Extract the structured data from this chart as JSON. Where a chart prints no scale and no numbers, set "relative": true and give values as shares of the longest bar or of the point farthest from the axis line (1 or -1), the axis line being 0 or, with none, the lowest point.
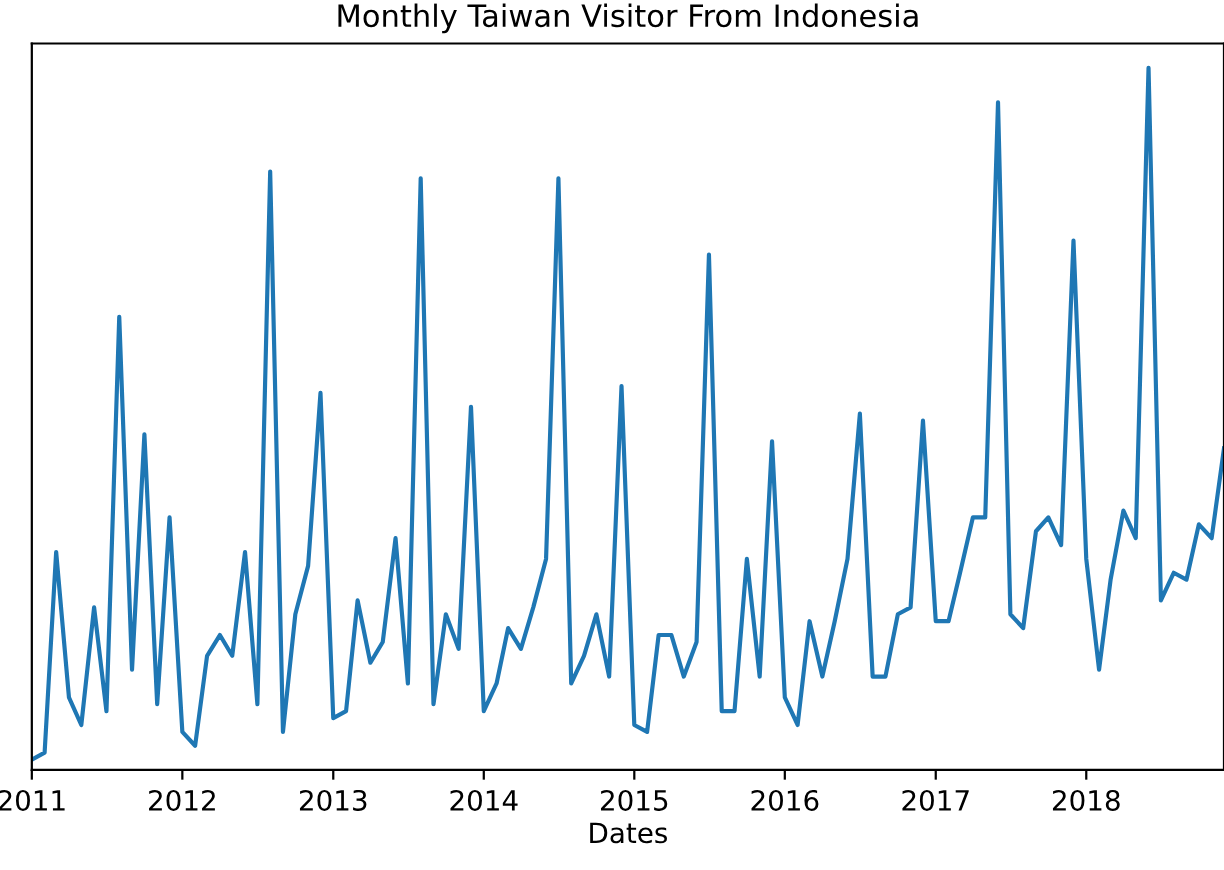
{
  "chart_data": {
    "type": "line",
    "title": "Monthly Taiwan Visitor From Indonesia",
    "xlabel": "Dates",
    "relative": true,
    "tick_labels": "x",
    "grid": false,
    "legend": false,
    "xlim": [
      "2011-01",
      "2018-12"
    ],
    "xticks": [
      {
        "value": "2011-01",
        "label": "2011"
      },
      {
        "value": "2012-01",
        "label": "2012"
      },
      {
        "value": "2013-01",
        "label": "2013"
      },
      {
        "value": "2014-01",
        "label": "2014"
      },
      {
        "value": "2015-01",
        "label": "2015"
      },
      {
        "value": "2016-01",
        "label": "2016"
      },
      {
        "value": "2017-01",
        "label": "2017"
      },
      {
        "value": "2018-01",
        "label": "2018"
      }
    ],
    "x": [
      "2011-01",
      "2011-02",
      "2011-03",
      "2011-04",
      "2011-05",
      "2011-06",
      "2011-07",
      "2011-08",
      "2011-09",
      "2011-10",
      "2011-11",
      "2011-12",
      "2012-01",
      "2012-02",
      "2012-03",
      "2012-04",
      "2012-05",
      "2012-06",
      "2012-07",
      "2012-08",
      "2012-09",
      "2012-10",
      "2012-11",
      "2012-12",
      "2013-01",
      "2013-02",
      "2013-03",
      "2013-04",
      "2013-05",
      "2013-06",
      "2013-07",
      "2013-08",
      "2013-09",
      "2013-10",
      "2013-11",
      "2013-12",
      "2014-01",
      "2014-02",
      "2014-03",
      "2014-04",
      "2014-05",
      "2014-06",
      "2014-07",
      "2014-08",
      "2014-09",
      "2014-10",
      "2014-11",
      "2014-12",
      "2015-01",
      "2015-02",
      "2015-03",
      "2015-04",
      "2015-05",
      "2015-06",
      "2015-07",
      "2015-08",
      "2015-09",
      "2015-10",
      "2015-11",
      "2015-12",
      "2016-01",
      "2016-02",
      "2016-03",
      "2016-04",
      "2016-05",
      "2016-06",
      "2016-07",
      "2016-08",
      "2016-09",
      "2016-10",
      "2016-11",
      "2016-12",
      "2017-01",
      "2017-02",
      "2017-03",
      "2017-04",
      "2017-05",
      "2017-06",
      "2017-07",
      "2017-08",
      "2017-09",
      "2017-10",
      "2017-11",
      "2017-12",
      "2018-01",
      "2018-02",
      "2018-03",
      "2018-04",
      "2018-05",
      "2018-06",
      "2018-07",
      "2018-08",
      "2018-09",
      "2018-10",
      "2018-11",
      "2018-12"
    ],
    "series": [
      {
        "color": "#1f77b4",
        "values": [
          0,
          0.01,
          0.3,
          0.09,
          0.05,
          0.22,
          0.07,
          0.64,
          0.13,
          0.47,
          0.08,
          0.35,
          0.04,
          0.02,
          0.15,
          0.18,
          0.15,
          0.3,
          0.08,
          0.85,
          0.04,
          0.21,
          0.28,
          0.53,
          0.06,
          0.07,
          0.23,
          0.14,
          0.17,
          0.32,
          0.11,
          0.84,
          0.08,
          0.21,
          0.16,
          0.51,
          0.07,
          0.11,
          0.19,
          0.16,
          0.22,
          0.29,
          0.84,
          0.11,
          0.15,
          0.21,
          0.12,
          0.54,
          0.05,
          0.04,
          0.18,
          0.18,
          0.12,
          0.17,
          0.73,
          0.07,
          0.07,
          0.29,
          0.12,
          0.46,
          0.09,
          0.05,
          0.2,
          0.12,
          0.2,
          0.29,
          0.5,
          0.12,
          0.12,
          0.21,
          0.22,
          0.49,
          0.2,
          0.2,
          0.27,
          0.35,
          0.35,
          0.95,
          0.21,
          0.19,
          0.33,
          0.35,
          0.31,
          0.75,
          0.29,
          0.13,
          0.26,
          0.36,
          0.32,
          1,
          0.23,
          0.27,
          0.26,
          0.34,
          0.32,
          0.45
        ]
      }
    ]
  }
}
